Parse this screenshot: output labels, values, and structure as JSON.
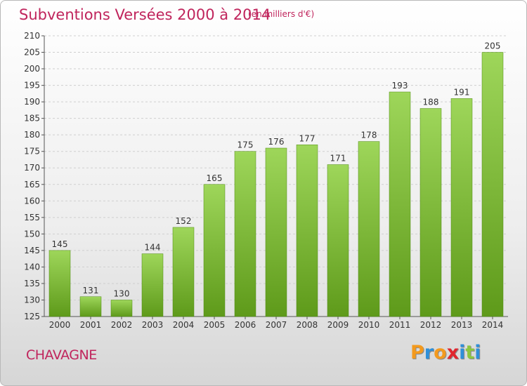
{
  "header": {
    "title": "Subventions Versées 2000 à 2014",
    "subtitle": "(en milliers d'€)"
  },
  "footer": {
    "place": "CHAVAGNE",
    "brand": "Proxiti"
  },
  "colors": {
    "accent": "#c0245c",
    "bar_light": "#9ed65a",
    "bar_dark": "#5e9a1a",
    "brand_letters": [
      "#f39a1e",
      "#2f8fd8",
      "#f39a1e",
      "#e0262e",
      "#2f8fd8",
      "#8cc63f",
      "#2f8fd8"
    ]
  },
  "chart_data": {
    "type": "bar",
    "categories": [
      "2000",
      "2001",
      "2002",
      "2003",
      "2004",
      "2005",
      "2006",
      "2007",
      "2008",
      "2009",
      "2010",
      "2011",
      "2012",
      "2013",
      "2014"
    ],
    "values": [
      145,
      131,
      130,
      144,
      152,
      165,
      175,
      176,
      177,
      171,
      178,
      193,
      188,
      191,
      205
    ],
    "ylim": [
      125,
      210
    ],
    "yticks": [
      125,
      130,
      135,
      140,
      145,
      150,
      155,
      160,
      165,
      170,
      175,
      180,
      185,
      190,
      195,
      200,
      205,
      210
    ],
    "grid": true
  }
}
